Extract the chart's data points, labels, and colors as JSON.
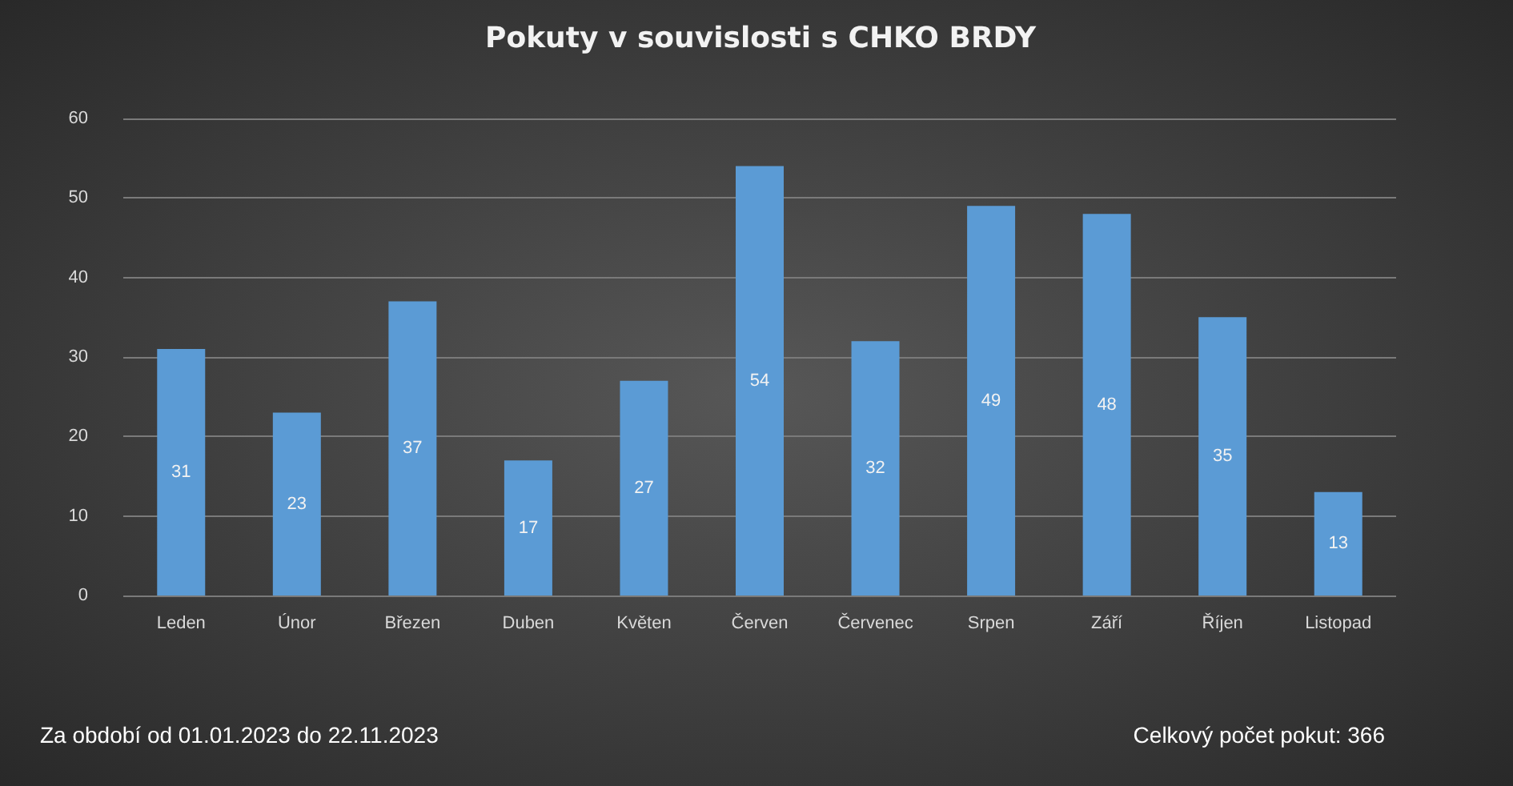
{
  "chart_data": {
    "type": "bar",
    "title": "Pokuty v souvislosti s CHKO BRDY",
    "categories": [
      "Leden",
      "Únor",
      "Březen",
      "Duben",
      "Květen",
      "Červen",
      "Červenec",
      "Srpen",
      "Září",
      "Říjen",
      "Listopad"
    ],
    "values": [
      31,
      23,
      37,
      17,
      27,
      54,
      32,
      49,
      48,
      35,
      13
    ],
    "color": "#5b9bd5",
    "ylim": [
      0,
      60
    ],
    "yticks": [
      0,
      10,
      20,
      30,
      40,
      50,
      60
    ],
    "grid": "y",
    "data_labels": true,
    "annotations": [
      "Za období od 01.01.2023 do 22.11.2023",
      "Celkový počet pokut: 366"
    ]
  }
}
